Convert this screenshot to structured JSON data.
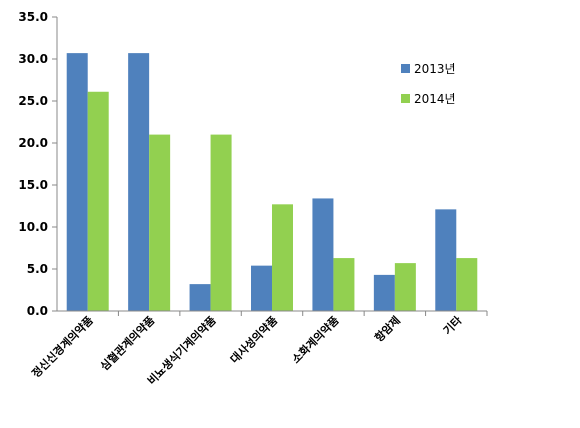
{
  "chart_data": {
    "type": "bar",
    "categories": [
      "정신신경계의약품",
      "심혈관계의약품",
      "비뇨생식기계의약품",
      "대사성의약품",
      "소화계의약품",
      "항암제",
      "기타"
    ],
    "series": [
      {
        "name": "2013년",
        "color": "#4F81BD",
        "values": [
          30.7,
          30.7,
          3.2,
          5.4,
          13.4,
          4.3,
          12.1
        ]
      },
      {
        "name": "2014년",
        "color": "#92D050",
        "values": [
          26.1,
          21.0,
          21.0,
          12.7,
          6.3,
          5.7,
          6.3
        ]
      }
    ],
    "yticks": [
      "0.0",
      "5.0",
      "10.0",
      "15.0",
      "20.0",
      "25.0",
      "30.0",
      "35.0"
    ],
    "ylim": [
      0,
      35
    ],
    "grid": false,
    "legend_position": "top-right"
  }
}
